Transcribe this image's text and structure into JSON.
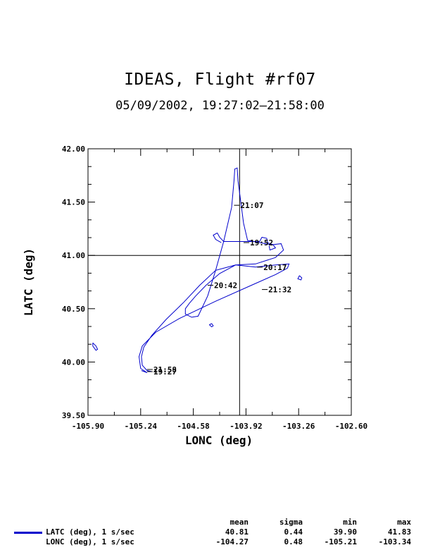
{
  "title": "IDEAS, Flight #rf07",
  "subtitle": "05/09/2002, 19:27:02–21:58:00",
  "colors": {
    "track": "#0000cc",
    "axes": "#000000"
  },
  "chart_data": {
    "type": "line",
    "xlabel": "LONC (deg)",
    "ylabel": "LATC (deg)",
    "xlim": [
      -105.9,
      -102.6
    ],
    "ylim": [
      39.5,
      42.0
    ],
    "x_ticks": [
      "-105.90",
      "-105.24",
      "-104.58",
      "-103.92",
      "-103.26",
      "-102.60"
    ],
    "y_ticks": [
      "39.50",
      "40.00",
      "40.50",
      "41.00",
      "41.50",
      "42.00"
    ],
    "crosshair": {
      "x": -104.0,
      "y": 41.0
    },
    "series": [
      {
        "name": "LATC (deg), 1 s/sec",
        "points": [
          [
            -105.23,
            39.92
          ],
          [
            -105.16,
            39.9
          ],
          [
            -105.24,
            39.94
          ],
          [
            -105.26,
            40.05
          ],
          [
            -105.22,
            40.15
          ],
          [
            -105.05,
            40.28
          ],
          [
            -104.75,
            40.41
          ],
          [
            -104.3,
            40.57
          ],
          [
            -103.85,
            40.72
          ],
          [
            -103.55,
            40.82
          ],
          [
            -103.4,
            40.88
          ],
          [
            -103.38,
            40.92
          ],
          [
            -103.55,
            40.91
          ],
          [
            -103.8,
            40.89
          ],
          [
            -104.05,
            40.91
          ],
          [
            -104.25,
            40.83
          ],
          [
            -104.42,
            40.72
          ],
          [
            -104.55,
            40.62
          ],
          [
            -104.63,
            40.55
          ],
          [
            -104.68,
            40.5
          ],
          [
            -104.68,
            40.45
          ],
          [
            -104.6,
            40.42
          ],
          [
            -104.52,
            40.43
          ],
          [
            -104.4,
            40.62
          ],
          [
            -104.3,
            40.86
          ],
          [
            -104.2,
            41.13
          ],
          [
            -104.1,
            41.45
          ],
          [
            -104.07,
            41.7
          ],
          [
            -104.06,
            41.81
          ],
          [
            -104.03,
            41.82
          ],
          [
            -104.02,
            41.7
          ],
          [
            -103.95,
            41.3
          ],
          [
            -103.9,
            41.14
          ],
          [
            -103.6,
            41.1
          ],
          [
            -103.48,
            41.11
          ],
          [
            -103.45,
            41.05
          ],
          [
            -103.55,
            40.98
          ],
          [
            -103.8,
            40.92
          ],
          [
            -104.05,
            40.91
          ],
          [
            -104.3,
            40.86
          ],
          [
            -104.5,
            40.72
          ],
          [
            -104.7,
            40.56
          ],
          [
            -104.92,
            40.4
          ],
          [
            -105.1,
            40.25
          ],
          [
            -105.2,
            40.14
          ],
          [
            -105.23,
            40.05
          ],
          [
            -105.22,
            39.97
          ],
          [
            -105.16,
            39.92
          ],
          [
            -105.1,
            39.91
          ]
        ]
      },
      {
        "name": "LONC (deg), 1 s/sec",
        "points": [
          [
            -104.23,
            41.12
          ],
          [
            -104.3,
            41.15
          ],
          [
            -104.33,
            41.19
          ],
          [
            -104.28,
            41.21
          ],
          [
            -104.25,
            41.17
          ],
          [
            -104.2,
            41.13
          ],
          [
            -104.0,
            41.13
          ],
          [
            -103.75,
            41.13
          ],
          [
            -103.72,
            41.17
          ],
          [
            -103.66,
            41.16
          ],
          [
            -103.65,
            41.12
          ],
          [
            -103.58,
            41.1
          ],
          [
            -103.55,
            41.07
          ],
          [
            -103.62,
            41.05
          ],
          [
            -103.63,
            41.09
          ]
        ]
      }
    ],
    "islands": [
      {
        "points": [
          [
            -105.84,
            40.18
          ],
          [
            -105.8,
            40.15
          ],
          [
            -105.78,
            40.12
          ],
          [
            -105.8,
            40.11
          ],
          [
            -105.84,
            40.15
          ],
          [
            -105.84,
            40.18
          ]
        ]
      },
      {
        "points": [
          [
            -104.38,
            40.35
          ],
          [
            -104.35,
            40.33
          ],
          [
            -104.33,
            40.34
          ],
          [
            -104.35,
            40.36
          ],
          [
            -104.38,
            40.35
          ]
        ]
      },
      {
        "points": [
          [
            -103.25,
            40.81
          ],
          [
            -103.22,
            40.79
          ],
          [
            -103.23,
            40.77
          ],
          [
            -103.27,
            40.78
          ],
          [
            -103.25,
            40.81
          ]
        ]
      }
    ],
    "annotations": [
      {
        "label": "21:07",
        "x": -104.07,
        "y": 41.47
      },
      {
        "label": "19:52",
        "x": -103.95,
        "y": 41.12
      },
      {
        "label": "20:17",
        "x": -103.78,
        "y": 40.89
      },
      {
        "label": "20:42",
        "x": -104.4,
        "y": 40.72
      },
      {
        "label": "21:32",
        "x": -103.72,
        "y": 40.68
      },
      {
        "label": "21:58",
        "x": -105.16,
        "y": 39.93
      },
      {
        "label": "19:27",
        "x": -105.16,
        "y": 39.91
      }
    ]
  },
  "stats": {
    "headers": [
      "mean",
      "sigma",
      "min",
      "max"
    ],
    "rows": [
      {
        "name": "LATC (deg), 1 s/sec",
        "mean": "40.81",
        "sigma": "0.44",
        "min": "39.90",
        "max": "41.83"
      },
      {
        "name": "LONC (deg), 1 s/sec",
        "mean": "-104.27",
        "sigma": "0.48",
        "min": "-105.21",
        "max": "-103.34"
      }
    ]
  }
}
